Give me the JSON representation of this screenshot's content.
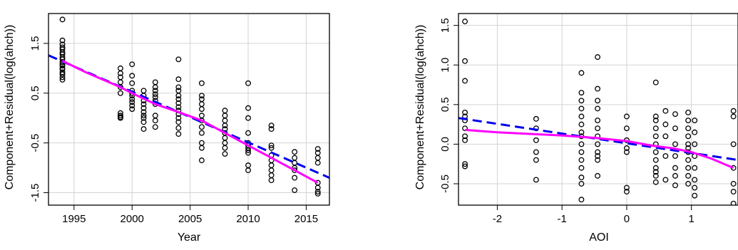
{
  "chart_data": [
    {
      "type": "scatter",
      "xlabel": "Year",
      "ylabel": "Component+Residual(log(ahch))",
      "xlim": [
        1992.8,
        2017.0
      ],
      "ylim": [
        -1.75,
        2.1
      ],
      "x_ticks": [
        1995,
        2000,
        2005,
        2010,
        2015
      ],
      "x_tick_labels": [
        "1995",
        "2000",
        "2005",
        "2010",
        "2015"
      ],
      "y_ticks": [
        -1.5,
        -0.5,
        0.5,
        1.5
      ],
      "y_tick_labels": [
        "-1.5",
        "-0.5",
        "0.5",
        "1.5"
      ],
      "grid": true,
      "series": [
        {
          "kind": "points",
          "color": "#000000",
          "x": [
            1994,
            1994,
            1994,
            1994,
            1994,
            1994,
            1994,
            1994,
            1994,
            1994,
            1994,
            1994,
            1994,
            1994,
            1994,
            1994,
            1994,
            1994,
            1999,
            1999,
            1999,
            1999,
            1999,
            1999,
            1999,
            1999,
            1999,
            1999,
            2000,
            2000,
            2000,
            2000,
            2000,
            2000,
            2000,
            2000,
            2000,
            2000,
            2001,
            2001,
            2001,
            2001,
            2001,
            2001,
            2001,
            2001,
            2001,
            2001,
            2002,
            2002,
            2002,
            2002,
            2002,
            2002,
            2002,
            2002,
            2002,
            2002,
            2004,
            2004,
            2004,
            2004,
            2004,
            2004,
            2004,
            2004,
            2004,
            2004,
            2004,
            2004,
            2004,
            2004,
            2006,
            2006,
            2006,
            2006,
            2006,
            2006,
            2006,
            2006,
            2006,
            2006,
            2006,
            2006,
            2008,
            2008,
            2008,
            2008,
            2008,
            2008,
            2008,
            2008,
            2008,
            2008,
            2010,
            2010,
            2010,
            2010,
            2010,
            2010,
            2010,
            2010,
            2010,
            2010,
            2010,
            2012,
            2012,
            2012,
            2012,
            2012,
            2012,
            2012,
            2012,
            2012,
            2012,
            2014,
            2014,
            2014,
            2014,
            2014,
            2014,
            2014,
            2016,
            2016,
            2016,
            2016,
            2016,
            2016,
            2016,
            2016
          ],
          "y": [
            1.98,
            1.56,
            1.48,
            1.42,
            1.38,
            1.32,
            1.28,
            1.22,
            1.18,
            1.12,
            1.08,
            1.05,
            1.0,
            0.98,
            0.92,
            0.88,
            0.82,
            0.77,
            1.0,
            0.9,
            0.82,
            0.72,
            0.62,
            0.5,
            0.1,
            0.05,
            0.02,
            0.0,
            1.08,
            0.85,
            0.7,
            0.55,
            0.5,
            0.45,
            0.38,
            0.32,
            0.25,
            0.18,
            0.55,
            0.45,
            0.35,
            0.28,
            0.2,
            0.12,
            0.05,
            0.0,
            -0.08,
            -0.22,
            0.72,
            0.62,
            0.55,
            0.48,
            0.42,
            0.35,
            0.28,
            0.05,
            -0.05,
            -0.18,
            1.18,
            0.78,
            0.62,
            0.55,
            0.45,
            0.38,
            0.3,
            0.22,
            0.15,
            0.08,
            0.0,
            -0.08,
            -0.2,
            -0.32,
            0.7,
            0.45,
            0.38,
            0.28,
            0.18,
            0.05,
            -0.05,
            -0.18,
            -0.3,
            -0.5,
            -0.6,
            -0.85,
            0.15,
            0.05,
            -0.05,
            -0.15,
            -0.22,
            -0.3,
            -0.4,
            -0.5,
            -0.6,
            -0.72,
            0.7,
            0.2,
            0.0,
            -0.3,
            -0.5,
            -0.55,
            -0.6,
            -0.65,
            -0.7,
            -0.95,
            -1.05,
            -0.15,
            -0.22,
            -0.55,
            -0.6,
            -0.75,
            -0.85,
            -0.95,
            -1.05,
            -1.15,
            -1.25,
            -0.68,
            -0.8,
            -0.9,
            -1.0,
            -1.05,
            -1.2,
            -1.45,
            -0.62,
            -0.7,
            -0.8,
            -0.9,
            -1.3,
            -1.4,
            -1.48,
            -1.52
          ]
        },
        {
          "kind": "line",
          "color": "#0000ee",
          "dash": true,
          "x": [
            1992.8,
            2017.0
          ],
          "y": [
            1.26,
            -1.2
          ]
        },
        {
          "kind": "line",
          "color": "#ff00ff",
          "dash": false,
          "x": [
            1994,
            1996,
            1998,
            1999,
            2000,
            2002,
            2004,
            2006,
            2008,
            2010,
            2012,
            2014,
            2016
          ],
          "y": [
            1.15,
            0.92,
            0.72,
            0.62,
            0.5,
            0.28,
            0.12,
            -0.05,
            -0.3,
            -0.55,
            -0.8,
            -1.05,
            -1.3
          ]
        }
      ]
    },
    {
      "type": "scatter",
      "xlabel": "AOI",
      "ylabel": "Component+Residual(log(ahch))",
      "xlim": [
        -2.6,
        1.72
      ],
      "ylim": [
        -0.77,
        1.65
      ],
      "x_ticks": [
        -2,
        -1,
        0,
        1
      ],
      "x_tick_labels": [
        "-2",
        "-1",
        "0",
        "1"
      ],
      "y_ticks": [
        -0.5,
        0.0,
        0.5,
        1.0,
        1.5
      ],
      "y_tick_labels": [
        "-0.5",
        "0.0",
        "0.5",
        "1.0",
        "1.5"
      ],
      "grid": true,
      "series": [
        {
          "kind": "points",
          "color": "#000000",
          "x": [
            -2.5,
            -2.5,
            -2.5,
            -2.5,
            -2.5,
            -2.5,
            -2.5,
            -2.5,
            -2.5,
            -2.5,
            -2.5,
            -1.4,
            -1.4,
            -1.4,
            -1.4,
            -1.4,
            -1.4,
            -0.7,
            -0.7,
            -0.7,
            -0.7,
            -0.7,
            -0.7,
            -0.7,
            -0.7,
            -0.7,
            -0.7,
            -0.7,
            -0.7,
            -0.7,
            -0.7,
            -0.7,
            -0.45,
            -0.45,
            -0.45,
            -0.45,
            -0.45,
            -0.45,
            -0.45,
            -0.45,
            -0.45,
            -0.45,
            -0.45,
            -0.45,
            0.0,
            0.0,
            0.0,
            0.0,
            0.0,
            0.0,
            0.0,
            0.45,
            0.45,
            0.45,
            0.45,
            0.45,
            0.45,
            0.45,
            0.45,
            0.45,
            0.45,
            0.45,
            0.45,
            0.6,
            0.6,
            0.6,
            0.6,
            0.6,
            0.75,
            0.75,
            0.75,
            0.75,
            0.75,
            0.75,
            0.75,
            0.95,
            0.95,
            0.95,
            0.95,
            0.95,
            0.95,
            0.95,
            0.95,
            0.95,
            0.95,
            0.95,
            1.05,
            1.05,
            1.05,
            1.05,
            1.05,
            1.05,
            1.05,
            1.05,
            1.65,
            1.65,
            1.65,
            1.65,
            1.65,
            1.65,
            1.65
          ],
          "y": [
            1.55,
            1.05,
            0.8,
            0.4,
            0.35,
            0.3,
            0.2,
            0.1,
            0.05,
            -0.25,
            -0.28,
            0.32,
            0.2,
            0.05,
            -0.1,
            -0.2,
            -0.45,
            0.9,
            0.65,
            0.55,
            0.45,
            0.35,
            0.25,
            0.15,
            0.1,
            0.0,
            -0.1,
            -0.2,
            -0.3,
            -0.42,
            -0.5,
            -0.7,
            1.1,
            0.7,
            0.55,
            0.45,
            0.3,
            0.2,
            0.1,
            0.0,
            -0.1,
            -0.15,
            -0.2,
            -0.4,
            0.35,
            0.2,
            0.05,
            -0.05,
            -0.1,
            -0.55,
            -0.6,
            0.78,
            0.35,
            0.3,
            0.2,
            0.1,
            0.0,
            -0.1,
            -0.2,
            -0.3,
            -0.35,
            -0.4,
            -0.48,
            0.42,
            0.25,
            0.1,
            -0.15,
            -0.45,
            0.38,
            0.2,
            0.0,
            -0.15,
            -0.3,
            -0.4,
            -0.52,
            0.4,
            0.3,
            0.2,
            0.1,
            0.0,
            -0.05,
            -0.1,
            -0.2,
            -0.3,
            -0.4,
            -0.5,
            0.3,
            0.15,
            0.0,
            -0.15,
            -0.3,
            -0.45,
            -0.55,
            -0.65,
            0.42,
            0.35,
            0.0,
            -0.3,
            -0.5,
            -0.6,
            -0.75
          ]
        },
        {
          "kind": "line",
          "color": "#0000ee",
          "dash": true,
          "x": [
            -2.6,
            1.72
          ],
          "y": [
            0.33,
            -0.2
          ]
        },
        {
          "kind": "line",
          "color": "#ff00ff",
          "dash": false,
          "x": [
            -2.5,
            -2.0,
            -1.5,
            -1.0,
            -0.5,
            0.0,
            0.4,
            0.7,
            1.0,
            1.3,
            1.65
          ],
          "y": [
            0.18,
            0.15,
            0.13,
            0.11,
            0.08,
            0.04,
            -0.02,
            -0.05,
            -0.1,
            -0.18,
            -0.3
          ]
        }
      ]
    }
  ]
}
